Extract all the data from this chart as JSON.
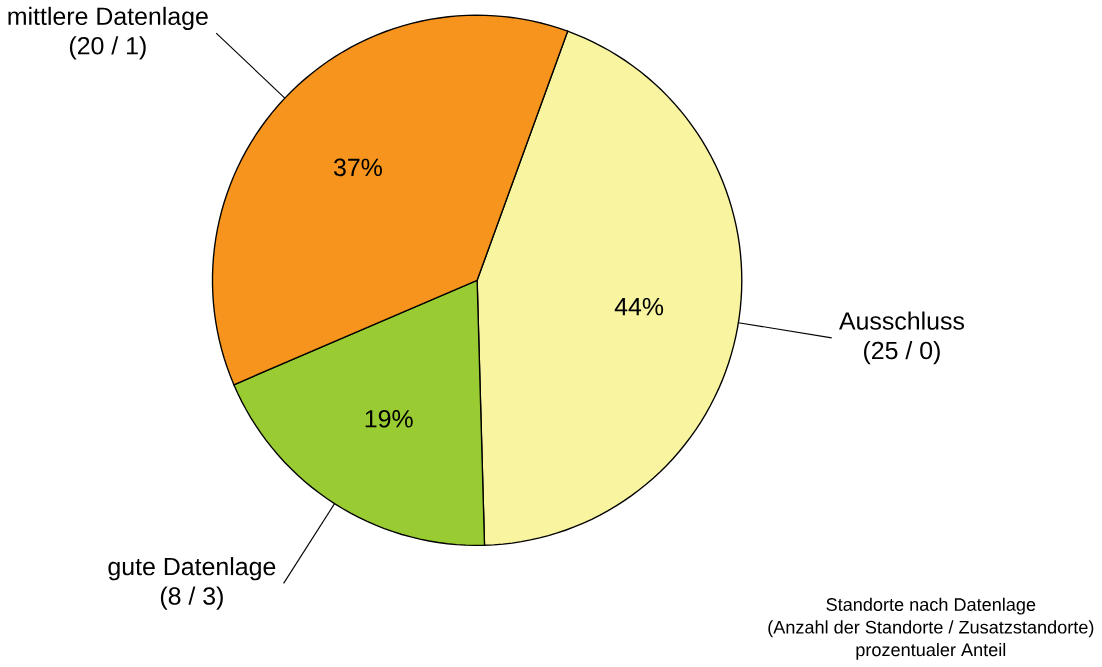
{
  "chart_data": {
    "type": "pie",
    "categories": [
      "Ausschluss",
      "gute Datenlage",
      "mittlere Datenlage"
    ],
    "values": [
      44,
      19,
      37
    ],
    "value_labels": [
      "44%",
      "19%",
      "37%"
    ],
    "colors": [
      "#f8f4a0",
      "#99cc33",
      "#f7941d"
    ],
    "annotations": [
      {
        "text": "(25 / 0)",
        "x": "Ausschluss"
      },
      {
        "text": "(8 / 3)",
        "x": "gute Datenlage"
      },
      {
        "text": "(20 / 1)",
        "x": "mittlere Datenlage"
      },
      "Standorte nach Datenlage",
      "(Anzahl der Standorte / Zusatzstandorte)",
      "prozentualer Anteil"
    ]
  }
}
